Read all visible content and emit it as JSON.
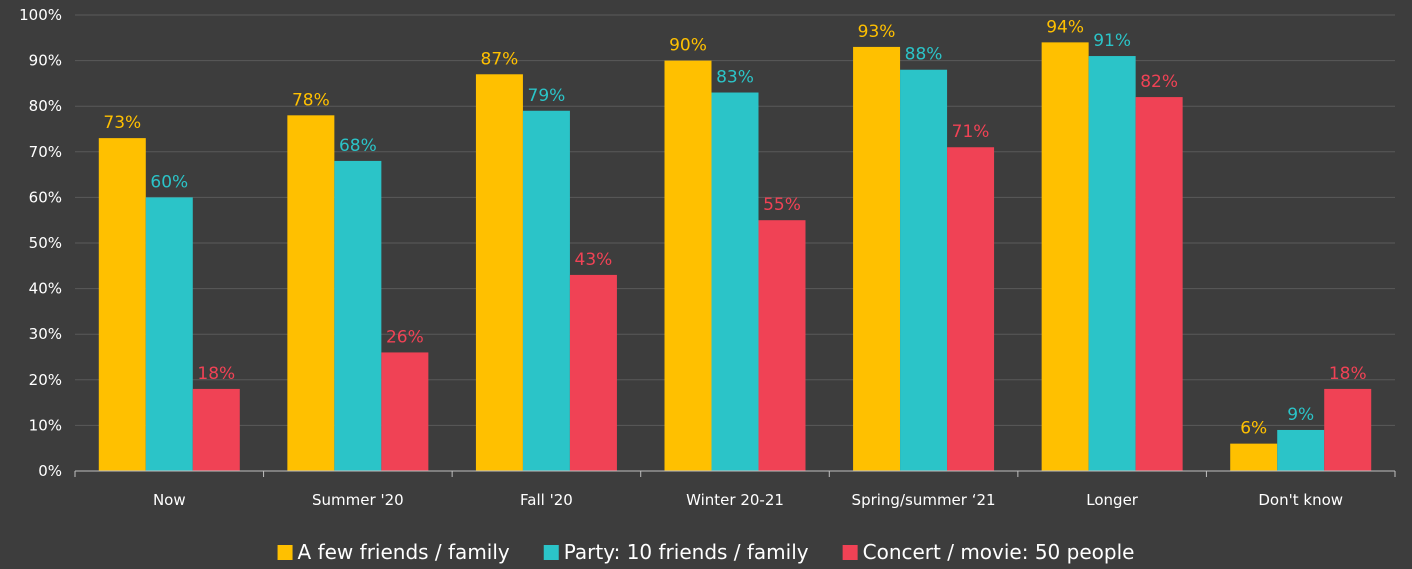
{
  "chart_data": {
    "type": "bar",
    "categories": [
      "Now",
      "Summer '20",
      "Fall '20",
      "Winter 20-21",
      "Spring/summer ‘21",
      "Longer",
      "Don't know"
    ],
    "series": [
      {
        "name": "A few friends / family",
        "color": "#ffc000",
        "values": [
          73,
          78,
          87,
          90,
          93,
          94,
          6
        ]
      },
      {
        "name": "Party: 10 friends / family",
        "color": "#2bc4c8",
        "values": [
          60,
          68,
          79,
          83,
          88,
          91,
          9
        ]
      },
      {
        "name": "Concert / movie: 50 people",
        "color": "#f04255",
        "values": [
          18,
          26,
          43,
          55,
          71,
          82,
          18
        ]
      }
    ],
    "ylim": [
      0,
      100
    ],
    "yticks": [
      "0%",
      "10%",
      "20%",
      "30%",
      "40%",
      "50%",
      "60%",
      "70%",
      "80%",
      "90%",
      "100%"
    ],
    "value_suffix": "%",
    "grid": true,
    "legend_position": "bottom",
    "title": "",
    "xlabel": "",
    "ylabel": ""
  },
  "colors": {
    "background": "#3d3d3d",
    "gridline": "#5a5a5a",
    "axis": "#bfbfbf",
    "text": "#ffffff"
  }
}
